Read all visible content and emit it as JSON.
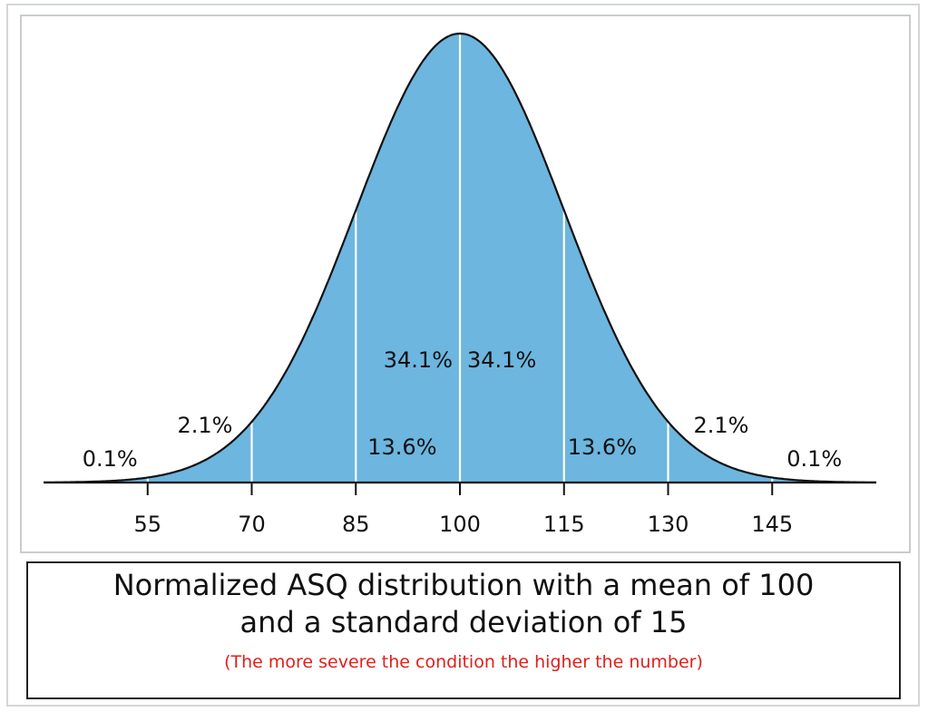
{
  "chart_data": {
    "type": "area",
    "distribution": "normal",
    "mean": 100,
    "sd": 15,
    "xlim": [
      40,
      160
    ],
    "x_ticks": [
      55,
      70,
      85,
      100,
      115,
      130,
      145
    ],
    "segments": [
      {
        "from": 40,
        "to": 55,
        "label": "0.1%"
      },
      {
        "from": 55,
        "to": 70,
        "label": "2.1%"
      },
      {
        "from": 70,
        "to": 85,
        "label": "13.6%"
      },
      {
        "from": 85,
        "to": 100,
        "label": "34.1%"
      },
      {
        "from": 100,
        "to": 115,
        "label": "34.1%"
      },
      {
        "from": 115,
        "to": 130,
        "label": "13.6%"
      },
      {
        "from": 130,
        "to": 145,
        "label": "2.1%"
      },
      {
        "from": 145,
        "to": 160,
        "label": "0.1%"
      }
    ],
    "title_line1": "Normalized ASQ distribution with a mean of 100",
    "title_line2": "and a standard deviation of 15",
    "note": "(The more severe the condition the higher the number)",
    "fill_color": "#6cb6df",
    "divider_color": "#ffffff",
    "curve_color": "#111111",
    "note_color": "#e0201b",
    "grid": false
  }
}
